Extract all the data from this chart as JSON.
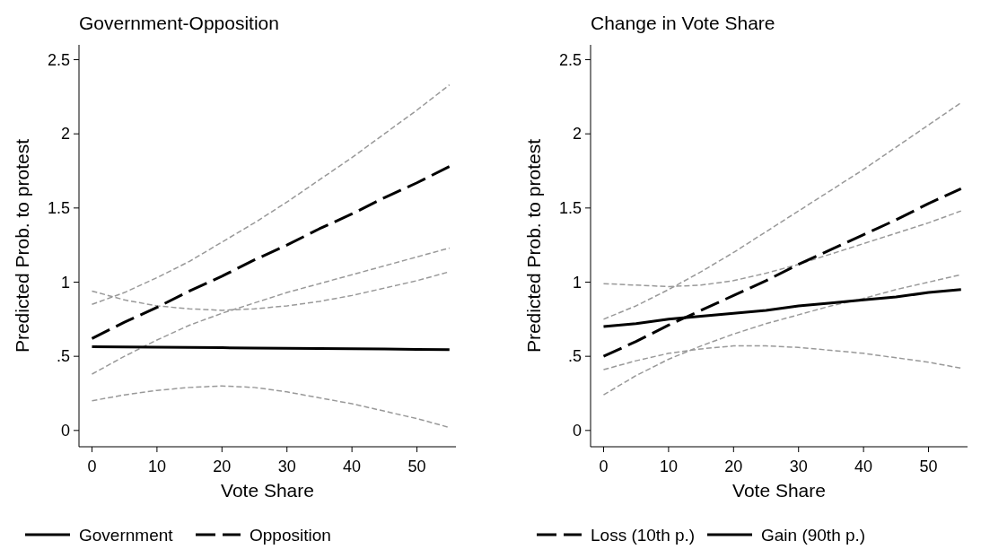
{
  "chart_data": [
    {
      "type": "line",
      "title": "Government-Opposition",
      "xlabel": "Vote Share",
      "ylabel": "Predicted Prob. to protest",
      "x": [
        0,
        5,
        10,
        15,
        20,
        25,
        30,
        35,
        40,
        45,
        50,
        55
      ],
      "xlim": [
        -2,
        56
      ],
      "ylim": [
        -0.11,
        2.6
      ],
      "xticks": [
        0,
        10,
        20,
        30,
        40,
        50
      ],
      "yticks": [
        0,
        {
          "value": 0.5,
          "label": ".5"
        },
        1,
        1.5,
        2,
        2.5
      ],
      "grid": false,
      "legend": "bottom",
      "series": [
        {
          "color": "#999999",
          "line_style": "dashed",
          "values": [
            0.2,
            0.24,
            0.27,
            0.29,
            0.3,
            0.29,
            0.26,
            0.22,
            0.18,
            0.13,
            0.08,
            0.02
          ]
        },
        {
          "color": "#999999",
          "line_style": "dashed",
          "values": [
            0.94,
            0.88,
            0.84,
            0.82,
            0.81,
            0.82,
            0.84,
            0.87,
            0.91,
            0.96,
            1.01,
            1.07
          ]
        },
        {
          "color": "#999999",
          "line_style": "dashed",
          "values": [
            0.38,
            0.5,
            0.61,
            0.71,
            0.79,
            0.86,
            0.93,
            0.99,
            1.05,
            1.11,
            1.17,
            1.23
          ]
        },
        {
          "color": "#999999",
          "line_style": "dashed",
          "values": [
            0.85,
            0.93,
            1.03,
            1.14,
            1.27,
            1.4,
            1.54,
            1.69,
            1.84,
            2.0,
            2.16,
            2.33
          ]
        },
        {
          "name": "Government",
          "color": "#000000",
          "line_style": "solid",
          "values": [
            0.565,
            0.563,
            0.561,
            0.56,
            0.558,
            0.556,
            0.554,
            0.552,
            0.551,
            0.549,
            0.547,
            0.545
          ]
        },
        {
          "name": "Opposition",
          "color": "#000000",
          "line_style": "dashed",
          "values": [
            0.62,
            0.73,
            0.83,
            0.94,
            1.04,
            1.15,
            1.25,
            1.36,
            1.46,
            1.57,
            1.67,
            1.78
          ]
        }
      ]
    },
    {
      "type": "line",
      "title": "Change in Vote Share",
      "xlabel": "Vote Share",
      "ylabel": "Predicted Prob. to protest",
      "x": [
        0,
        5,
        10,
        15,
        20,
        25,
        30,
        35,
        40,
        45,
        50,
        55
      ],
      "xlim": [
        -2,
        56
      ],
      "ylim": [
        -0.11,
        2.6
      ],
      "xticks": [
        0,
        10,
        20,
        30,
        40,
        50
      ],
      "yticks": [
        0,
        {
          "value": 0.5,
          "label": ".5"
        },
        1,
        1.5,
        2,
        2.5
      ],
      "grid": false,
      "legend": "bottom",
      "series": [
        {
          "color": "#999999",
          "line_style": "dashed",
          "values": [
            0.24,
            0.37,
            0.48,
            0.57,
            0.65,
            0.72,
            0.78,
            0.84,
            0.89,
            0.95,
            1.0,
            1.05
          ]
        },
        {
          "color": "#999999",
          "line_style": "dashed",
          "values": [
            0.75,
            0.84,
            0.95,
            1.07,
            1.2,
            1.34,
            1.48,
            1.62,
            1.76,
            1.91,
            2.06,
            2.21
          ]
        },
        {
          "color": "#999999",
          "line_style": "dashed",
          "values": [
            0.41,
            0.47,
            0.52,
            0.55,
            0.57,
            0.57,
            0.56,
            0.54,
            0.52,
            0.49,
            0.46,
            0.42
          ]
        },
        {
          "color": "#999999",
          "line_style": "dashed",
          "values": [
            0.99,
            0.98,
            0.97,
            0.98,
            1.01,
            1.06,
            1.12,
            1.19,
            1.26,
            1.33,
            1.4,
            1.48
          ]
        },
        {
          "name": "Loss (10th p.)",
          "color": "#000000",
          "line_style": "dashed",
          "values": [
            0.5,
            0.6,
            0.71,
            0.81,
            0.91,
            1.01,
            1.12,
            1.22,
            1.32,
            1.42,
            1.53,
            1.63
          ]
        },
        {
          "name": "Gain (90th p.)",
          "color": "#000000",
          "line_style": "solid",
          "values": [
            0.7,
            0.72,
            0.75,
            0.77,
            0.79,
            0.81,
            0.84,
            0.86,
            0.88,
            0.9,
            0.93,
            0.95
          ]
        }
      ]
    }
  ]
}
